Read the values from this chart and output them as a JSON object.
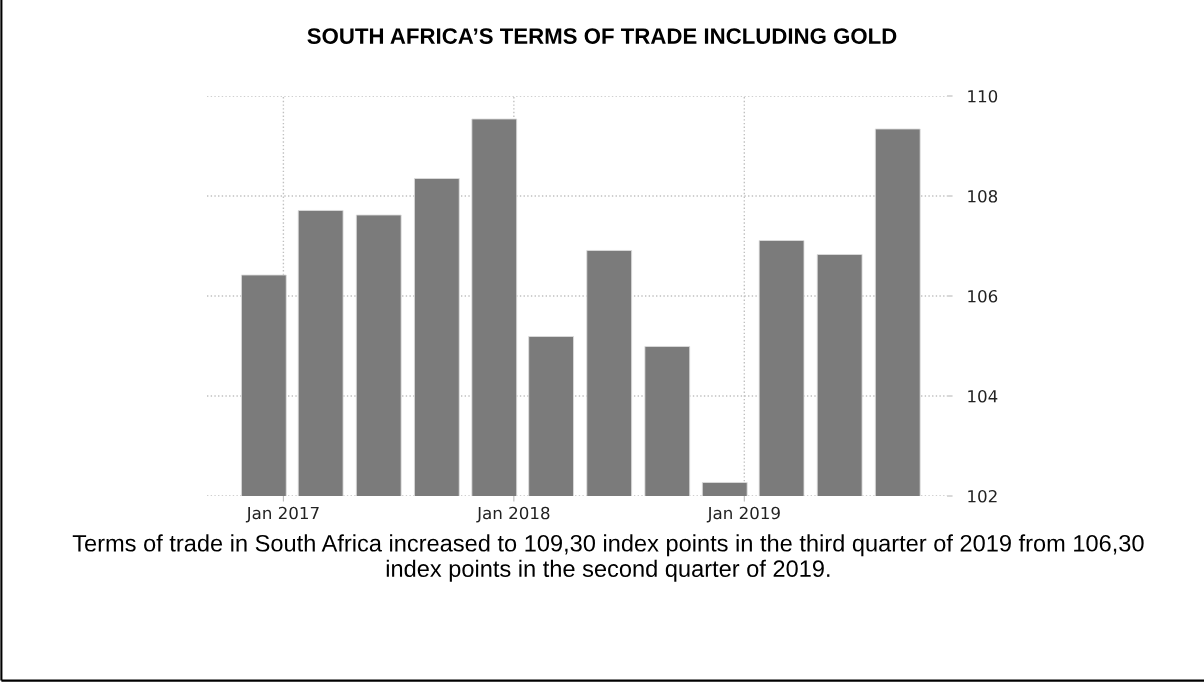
{
  "chart_data": {
    "type": "bar",
    "title": "SOUTH AFRICA’S TERMS OF TRADE INCLUDING GOLD",
    "x": [
      "2016-12-01",
      "2017-03-01",
      "2017-06-01",
      "2017-09-01",
      "2017-12-01",
      "2018-03-01",
      "2018-06-01",
      "2018-09-01",
      "2018-12-01",
      "2019-03-01",
      "2019-06-01",
      "2019-09-01"
    ],
    "values": [
      106.42,
      107.71,
      107.62,
      108.35,
      109.54,
      105.19,
      106.91,
      104.99,
      102.27,
      107.11,
      106.83,
      109.34
    ],
    "color": "#7b7b7b",
    "xlim": [
      "2016-09-02",
      "2019-11-18"
    ],
    "xticks": [
      {
        "value": "2017-01-01",
        "label": "Jan 2017"
      },
      {
        "value": "2018-01-01",
        "label": "Jan 2018"
      },
      {
        "value": "2019-01-01",
        "label": "Jan 2019"
      }
    ],
    "ylim": [
      102,
      110
    ],
    "yticks": [
      102,
      104,
      106,
      108,
      110
    ],
    "grid": true,
    "annotations": [
      "Terms of trade in South Africa increased to 109,30 index points in the third quarter of 2019 from 106,30 index points in the second quarter of 2019."
    ]
  }
}
